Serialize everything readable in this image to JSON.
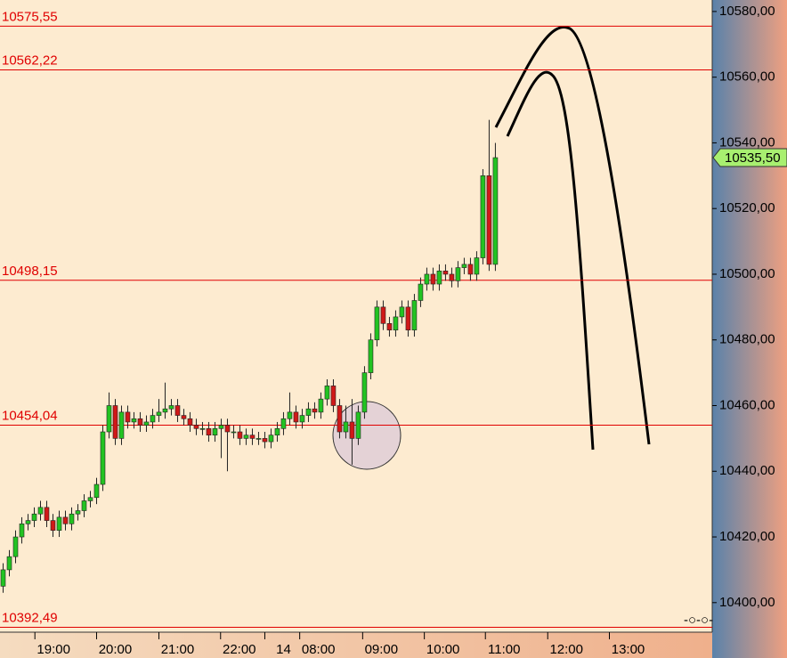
{
  "chart_data": {
    "type": "candlestick",
    "open": [
      10405,
      10410,
      10414,
      10420,
      10424,
      10425,
      10427,
      10429,
      10425,
      10422,
      10426,
      10424,
      10427,
      10428,
      10431,
      10432,
      10436,
      10452,
      10460,
      10450,
      10458,
      10455,
      10456,
      10454,
      10455,
      10457,
      10458,
      10459,
      10460,
      10457,
      10456,
      10454,
      10453,
      10453,
      10451,
      10453,
      10454,
      10452,
      10452,
      10450,
      10451,
      10450,
      10450,
      10449,
      10451,
      10453,
      10456,
      10458,
      10455,
      10457,
      10459,
      10458,
      10462,
      10466,
      10460,
      10452,
      10455,
      10450,
      10458,
      10470,
      10480,
      10490,
      10485,
      10483,
      10487,
      10490,
      10483,
      10492,
      10497,
      10500,
      10497,
      10501,
      10500,
      10498,
      10502,
      10503,
      10500,
      10505,
      10530,
      10503
    ],
    "high": [
      10412,
      10416,
      10422,
      10426,
      10427,
      10429,
      10431,
      10431,
      10427,
      10428,
      10428,
      10429,
      10430,
      10433,
      10434,
      10438,
      10454,
      10464,
      10462,
      10460,
      10460,
      10458,
      10458,
      10457,
      10459,
      10462,
      10467,
      10462,
      10462,
      10459,
      10458,
      10456,
      10455,
      10455,
      10455,
      10456,
      10456,
      10454,
      10454,
      10453,
      10453,
      10452,
      10452,
      10453,
      10455,
      10458,
      10464,
      10460,
      10459,
      10461,
      10461,
      10464,
      10468,
      10468,
      10462,
      10460,
      10462,
      10460,
      10472,
      10482,
      10492,
      10492,
      10487,
      10489,
      10492,
      10492,
      10494,
      10499,
      10502,
      10502,
      10503,
      10503,
      10502,
      10504,
      10505,
      10505,
      10507,
      10532,
      10547,
      10540
    ],
    "low": [
      10403,
      10408,
      10412,
      10418,
      10422,
      10423,
      10425,
      10423,
      10420,
      10420,
      10422,
      10422,
      10425,
      10426,
      10429,
      10430,
      10434,
      10450,
      10448,
      10448,
      10453,
      10453,
      10452,
      10452,
      10453,
      10455,
      10456,
      10457,
      10455,
      10454,
      10452,
      10451,
      10451,
      10449,
      10449,
      10444,
      10440,
      10450,
      10448,
      10448,
      10448,
      10448,
      10447,
      10447,
      10449,
      10451,
      10454,
      10453,
      10453,
      10455,
      10456,
      10456,
      10460,
      10458,
      10450,
      10450,
      10442,
      10448,
      10456,
      10468,
      10478,
      10483,
      10481,
      10481,
      10485,
      10481,
      10481,
      10490,
      10495,
      10495,
      10495,
      10498,
      10496,
      10496,
      10500,
      10498,
      10498,
      10503,
      10501,
      10501
    ],
    "close": [
      10410,
      10414,
      10420,
      10424,
      10425,
      10427,
      10429,
      10425,
      10422,
      10426,
      10424,
      10427,
      10428,
      10431,
      10432,
      10436,
      10452,
      10460,
      10450,
      10458,
      10455,
      10456,
      10454,
      10455,
      10457,
      10458,
      10459,
      10460,
      10457,
      10456,
      10454,
      10453,
      10453,
      10451,
      10453,
      10454,
      10452,
      10452,
      10450,
      10451,
      10450,
      10450,
      10449,
      10451,
      10453,
      10456,
      10458,
      10455,
      10457,
      10459,
      10458,
      10462,
      10466,
      10460,
      10452,
      10455,
      10450,
      10458,
      10470,
      10480,
      10490,
      10485,
      10483,
      10487,
      10490,
      10483,
      10492,
      10497,
      10500,
      10497,
      10501,
      10500,
      10498,
      10502,
      10503,
      10500,
      10505,
      10530,
      10503,
      10535.5
    ],
    "up_color": "#22c322",
    "down_color": "#d01818",
    "levels": [
      {
        "value": 10575.55,
        "label": "10575,55"
      },
      {
        "value": 10562.22,
        "label": "10562,22"
      },
      {
        "value": 10498.15,
        "label": "10498,15"
      },
      {
        "value": 10454.04,
        "label": "10454,04"
      },
      {
        "value": 10392.49,
        "label": "10392,49"
      }
    ],
    "level_color": "#e00000",
    "last_price": {
      "value": 10535.5,
      "label": "10535,50"
    },
    "ylim": [
      10391,
      10583.5
    ],
    "yticks": [
      {
        "value": 10400,
        "label": "10400,00"
      },
      {
        "value": 10420,
        "label": "10420,00"
      },
      {
        "value": 10440,
        "label": "10440,00"
      },
      {
        "value": 10460,
        "label": "10460,00"
      },
      {
        "value": 10480,
        "label": "10480,00"
      },
      {
        "value": 10500,
        "label": "10500,00"
      },
      {
        "value": 10520,
        "label": "10520,00"
      },
      {
        "value": 10540,
        "label": "10540,00"
      },
      {
        "value": 10560,
        "label": "10560,00"
      },
      {
        "value": 10580,
        "label": "10580,00"
      }
    ],
    "xlim": [
      -0.5,
      113.8
    ],
    "xticks": [
      {
        "value": 8.1,
        "label": "19:00"
      },
      {
        "value": 18,
        "label": "20:00"
      },
      {
        "value": 28,
        "label": "21:00"
      },
      {
        "value": 37.9,
        "label": "22:00"
      },
      {
        "value": 45,
        "label": "14"
      },
      {
        "value": 50.6,
        "label": "08:00"
      },
      {
        "value": 60.7,
        "label": "09:00"
      },
      {
        "value": 70.6,
        "label": "10:00"
      },
      {
        "value": 80.4,
        "label": "11:00"
      },
      {
        "value": 90.4,
        "label": "12:00"
      },
      {
        "value": 100.3,
        "label": "13:00"
      }
    ]
  }
}
